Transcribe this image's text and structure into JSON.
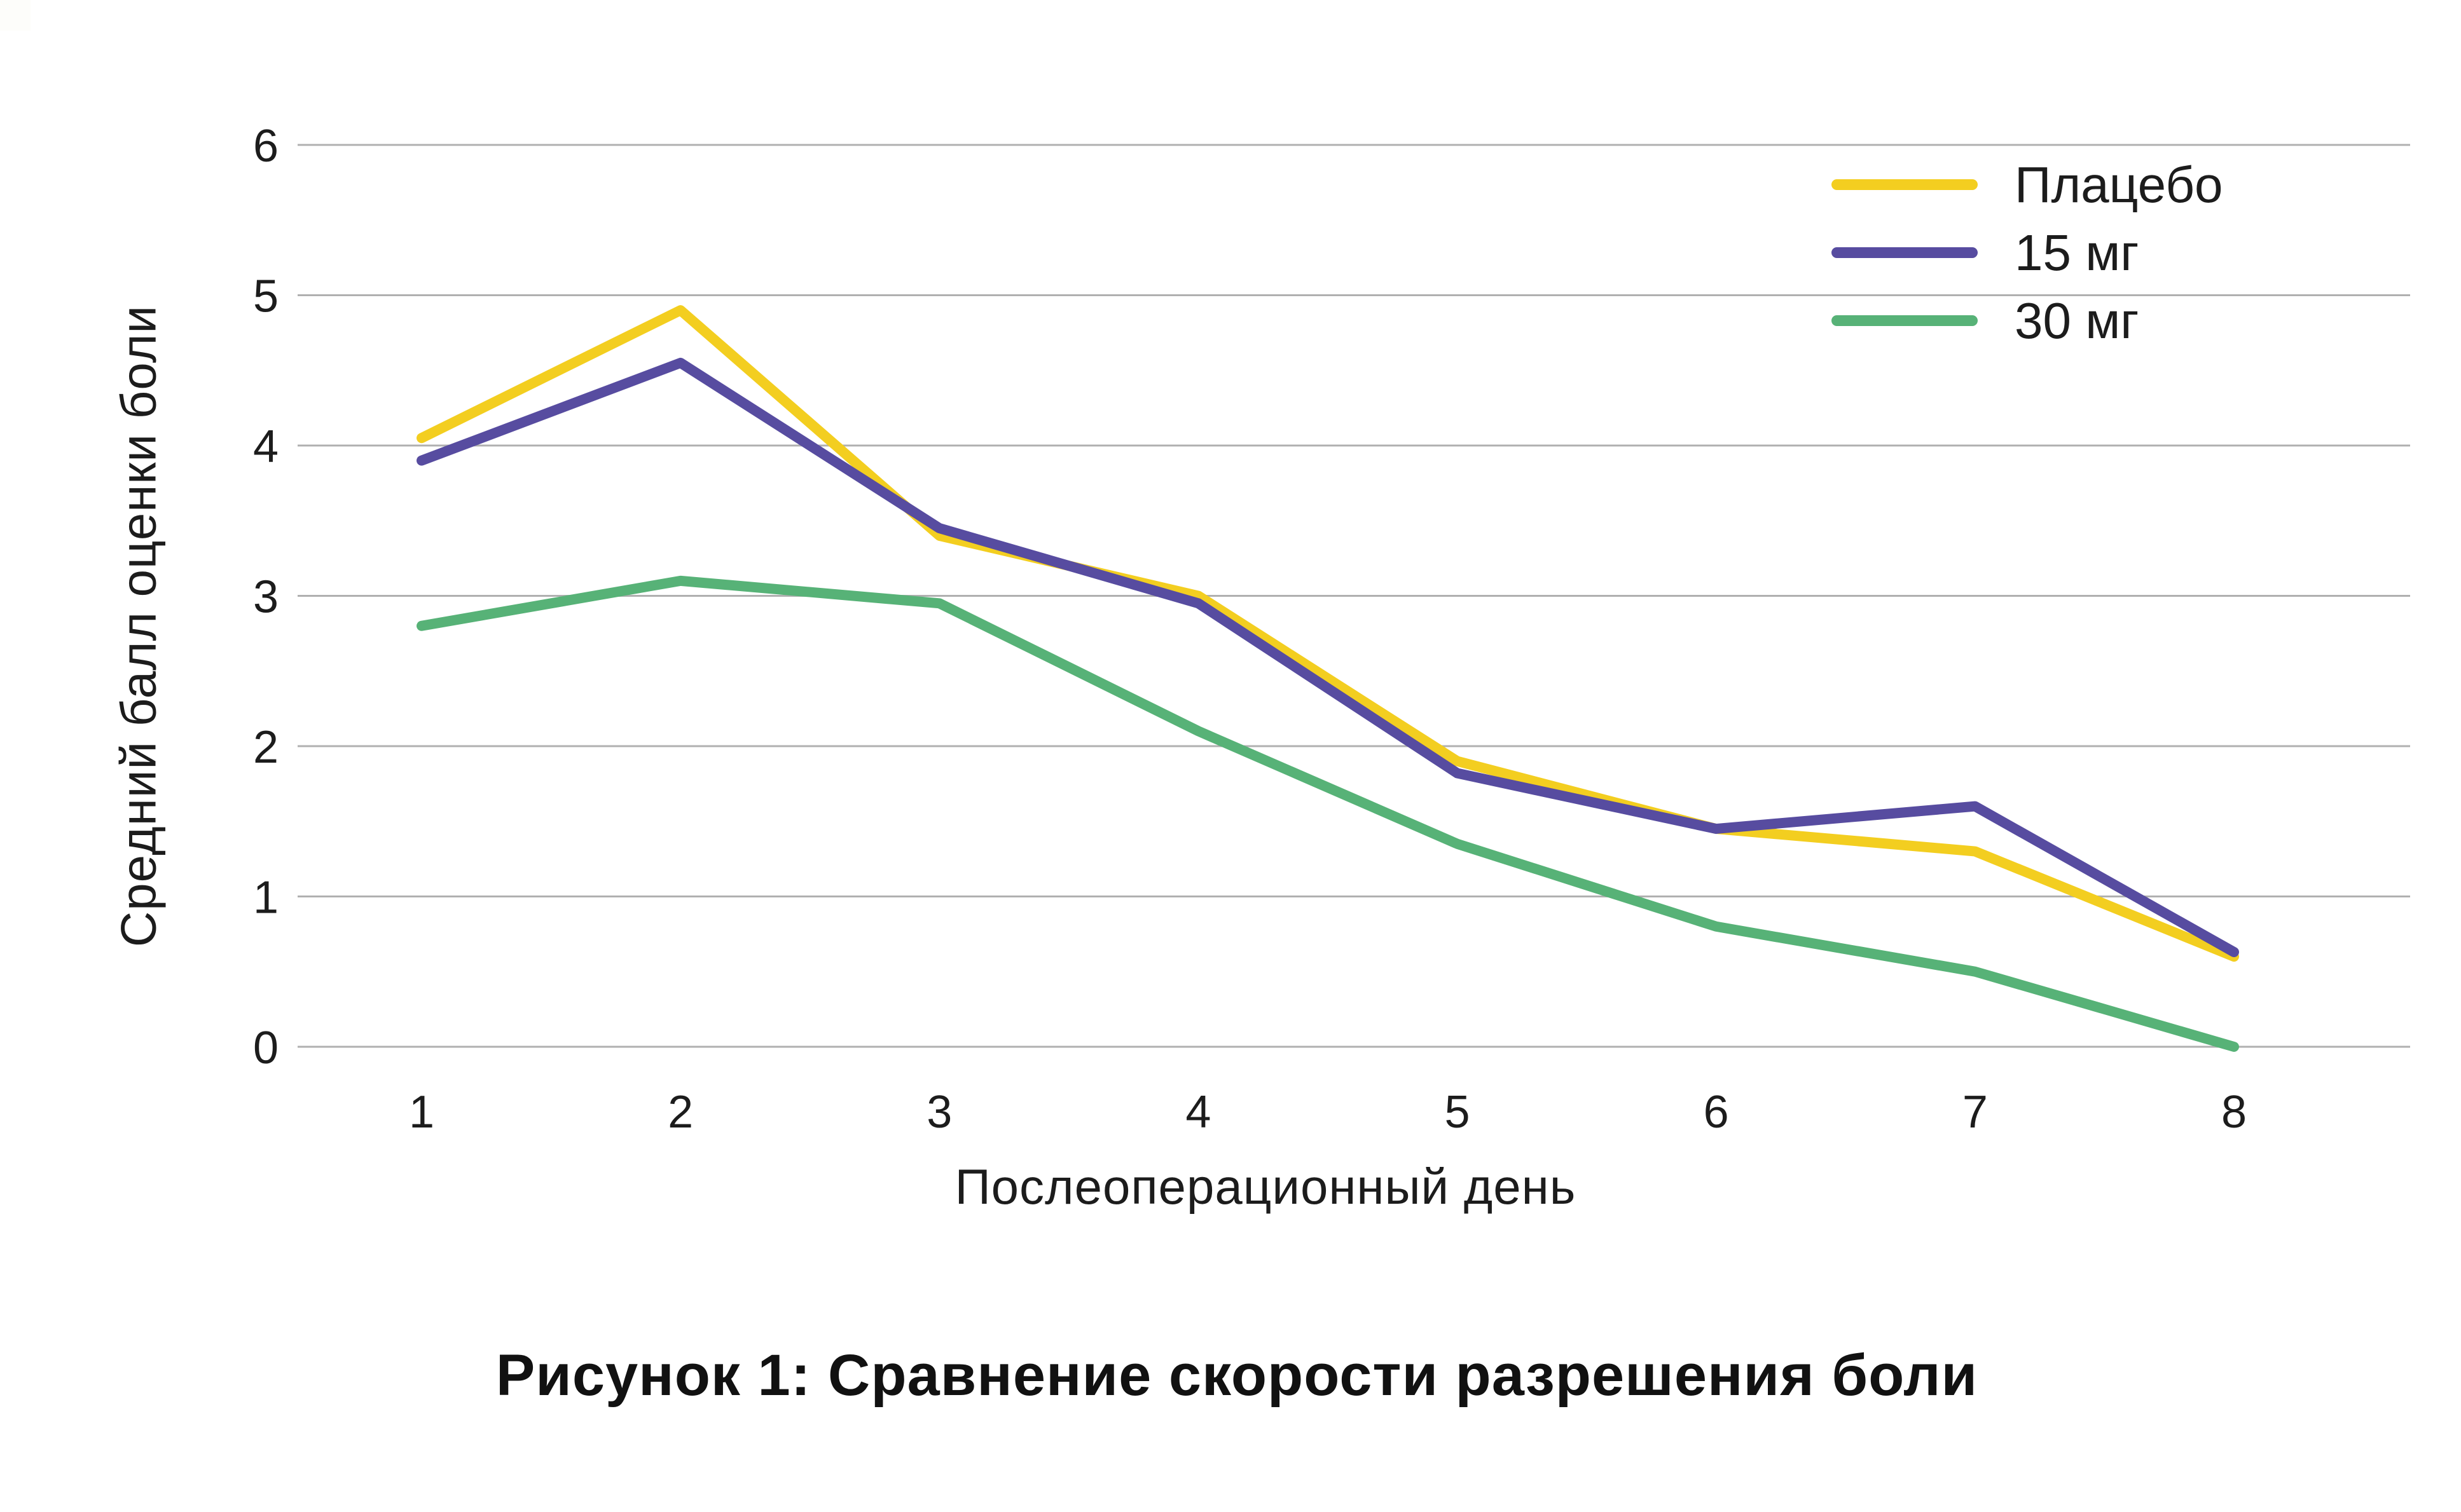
{
  "caption": "Рисунок 1: Сравнение скорости разрешения боли",
  "colors": {
    "grid": "#b0b0b0",
    "text": "#1c1c1c",
    "background": "#ffffff"
  },
  "chart_data": {
    "type": "line",
    "title": "",
    "xlabel": "Послеоперационный день",
    "ylabel": "Средний балл оценки боли",
    "x": [
      1,
      2,
      3,
      4,
      5,
      6,
      7,
      8
    ],
    "xtick_labels": [
      "1",
      "2",
      "3",
      "4",
      "5",
      "6",
      "7",
      "8"
    ],
    "yticks": [
      0,
      1,
      2,
      3,
      4,
      5,
      6
    ],
    "ylim": [
      0,
      6
    ],
    "grid": "horizontal",
    "legend_position": "top-right",
    "series": [
      {
        "name": "Плацебо",
        "color": "#f3ce20",
        "values": [
          4.05,
          4.9,
          3.4,
          3.0,
          1.9,
          1.45,
          1.3,
          0.6
        ]
      },
      {
        "name": "15 мг",
        "color": "#574ca0",
        "values": [
          3.9,
          4.55,
          3.45,
          2.95,
          1.82,
          1.45,
          1.6,
          0.63
        ]
      },
      {
        "name": "30 мг",
        "color": "#57b277",
        "values": [
          2.8,
          3.1,
          2.95,
          2.1,
          1.35,
          0.8,
          0.5,
          0.0
        ]
      }
    ]
  }
}
